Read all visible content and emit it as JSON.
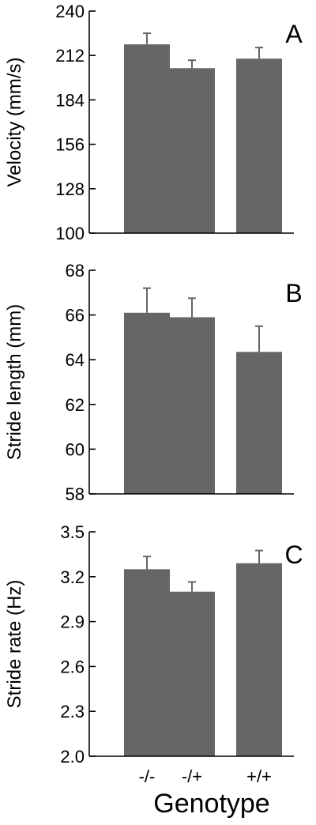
{
  "chart_data": [
    {
      "type": "bar",
      "panel_label": "A",
      "ylabel": "Velocity (mm/s)",
      "categories": [
        "-/-",
        "-/+",
        "+/+"
      ],
      "values": [
        219,
        204,
        210
      ],
      "errors": [
        7,
        5,
        7
      ],
      "ylim": [
        100,
        240
      ],
      "yticks": [
        100,
        128,
        156,
        184,
        212,
        240
      ],
      "bar_color": "#666666"
    },
    {
      "type": "bar",
      "panel_label": "B",
      "ylabel": "Stride length (mm)",
      "categories": [
        "-/-",
        "-/+",
        "+/+"
      ],
      "values": [
        66.1,
        65.9,
        64.35
      ],
      "errors": [
        1.1,
        0.85,
        1.15
      ],
      "ylim": [
        58,
        68
      ],
      "yticks": [
        58,
        60,
        62,
        64,
        66,
        68
      ],
      "bar_color": "#666666"
    },
    {
      "type": "bar",
      "panel_label": "C",
      "ylabel": "Stride rate (Hz)",
      "categories": [
        "-/-",
        "-/+",
        "+/+"
      ],
      "values": [
        3.25,
        3.1,
        3.29
      ],
      "errors": [
        0.085,
        0.065,
        0.085
      ],
      "ylim": [
        2.0,
        3.5
      ],
      "yticks": [
        "2.0",
        "2.3",
        "2.6",
        "2.9",
        "3.2",
        "3.5"
      ],
      "bar_color": "#666666"
    }
  ],
  "xlabel": "Genotype",
  "x_tick_labels": [
    "-/-",
    "-/+",
    "+/+"
  ]
}
